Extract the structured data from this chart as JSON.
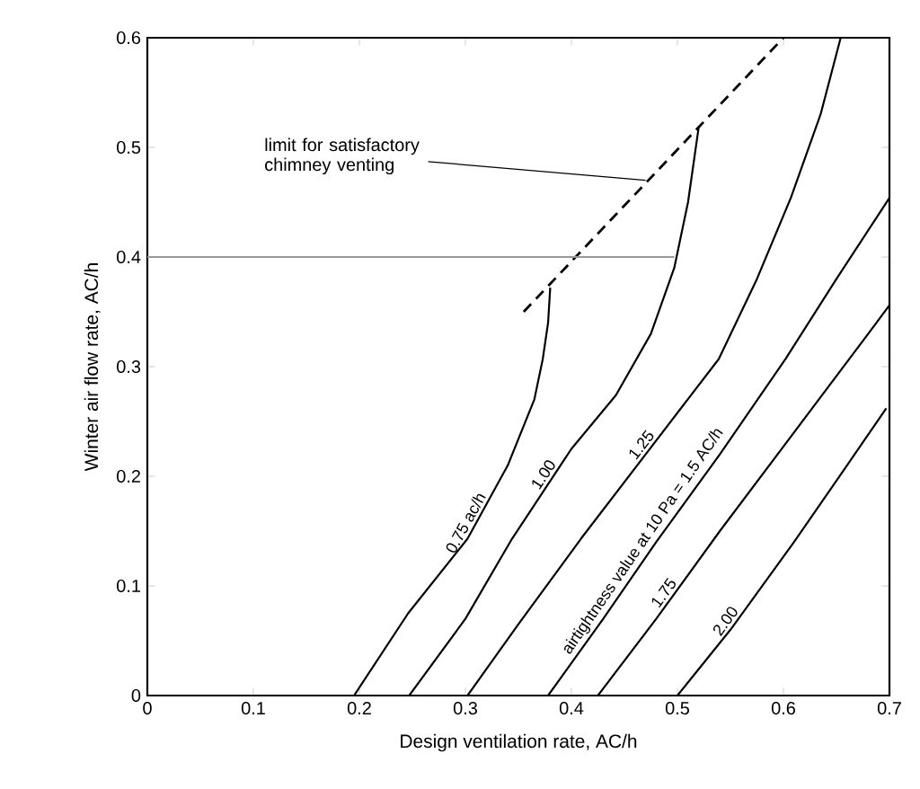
{
  "chart_data": {
    "type": "line",
    "xlabel": "Design ventilation rate, AC/h",
    "ylabel": "Winter air flow rate, AC/h",
    "xlim": [
      0,
      0.7
    ],
    "ylim": [
      0,
      0.6
    ],
    "xticks": [
      0,
      0.1,
      0.2,
      0.3,
      0.4,
      0.5,
      0.6,
      0.7
    ],
    "yticks": [
      0,
      0.1,
      0.2,
      0.3,
      0.4,
      0.5,
      0.6
    ],
    "annotations": [
      {
        "text": "limit for satisfactory chimney venting",
        "x": 0.47,
        "y": 0.47
      }
    ],
    "series": [
      {
        "name": "0.75 ac/h",
        "color": "#000000",
        "x": [
          0.195,
          0.246,
          0.302,
          0.34,
          0.365,
          0.373,
          0.378,
          0.38
        ],
        "values": [
          0,
          0.075,
          0.143,
          0.21,
          0.27,
          0.307,
          0.34,
          0.372
        ]
      },
      {
        "name": "1.00",
        "color": "#000000",
        "x": [
          0.247,
          0.3,
          0.344,
          0.4,
          0.442,
          0.475,
          0.497,
          0.51,
          0.52
        ],
        "values": [
          0,
          0.07,
          0.143,
          0.225,
          0.274,
          0.33,
          0.39,
          0.45,
          0.518
        ]
      },
      {
        "name": "1.25",
        "color": "#000000",
        "x": [
          0.302,
          0.35,
          0.409,
          0.47,
          0.539,
          0.575,
          0.607,
          0.635,
          0.654
        ],
        "values": [
          0,
          0.065,
          0.143,
          0.22,
          0.307,
          0.38,
          0.454,
          0.53,
          0.6
        ]
      },
      {
        "name": "airtightness value at 10 Pa = 1.5 AC/h",
        "color": "#000000",
        "x": [
          0.378,
          0.43,
          0.48,
          0.54,
          0.602,
          0.65,
          0.7
        ],
        "values": [
          0,
          0.07,
          0.14,
          0.22,
          0.307,
          0.38,
          0.454
        ]
      },
      {
        "name": "1.75",
        "color": "#000000",
        "x": [
          0.425,
          0.48,
          0.54,
          0.61,
          0.68,
          0.7
        ],
        "values": [
          0,
          0.07,
          0.15,
          0.24,
          0.33,
          0.356
        ]
      },
      {
        "name": "2.00",
        "color": "#000000",
        "x": [
          0.5,
          0.55,
          0.61,
          0.66,
          0.697
        ],
        "values": [
          0,
          0.06,
          0.14,
          0.21,
          0.262
        ]
      },
      {
        "color": "#000000",
        "line_style": "dashed",
        "x": [
          0.355,
          0.6
        ],
        "values": [
          0.35,
          0.6
        ]
      },
      {
        "color": "#999999",
        "x": [
          0,
          0.497
        ],
        "values": [
          0.4,
          0.4
        ]
      }
    ]
  }
}
